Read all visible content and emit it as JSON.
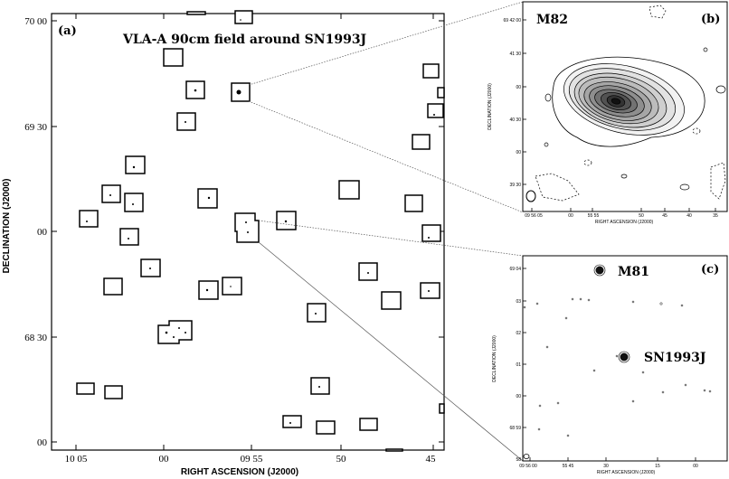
{
  "panel_a": {
    "label": "(a)",
    "title": "VLA-A 90cm field around SN1993J",
    "xlabel": "RIGHT ASCENSION (J2000)",
    "ylabel": "DECLINATION (J2000)",
    "xticks": [
      "10 05",
      "00",
      "09 55",
      "50",
      "45"
    ],
    "yticks": [
      "70 00",
      "69 30",
      "00",
      "68 30",
      "00"
    ]
  },
  "panel_b": {
    "label": "(b)",
    "source": "M82",
    "xlabel": "RIGHT ASCENSION (J2000)",
    "ylabel": "DECLINATION (J2000)",
    "xticks": [
      "09 56 05",
      "00",
      "55 55",
      "50",
      "45",
      "40",
      "35"
    ],
    "yticks": [
      "69 42 00",
      "41 30",
      "00",
      "40 30",
      "00",
      "39 30"
    ]
  },
  "panel_c": {
    "label": "(c)",
    "source_1": "M81",
    "source_2": "SN1993J",
    "xlabel": "RIGHT ASCENSION (J2000)",
    "ylabel": "DECLINATION (J2000)",
    "xticks": [
      "09 56 00",
      "55 45",
      "30",
      "15",
      "00"
    ],
    "yticks": [
      "69 04",
      "03",
      "02",
      "01",
      "00",
      "68 59",
      "58"
    ]
  }
}
